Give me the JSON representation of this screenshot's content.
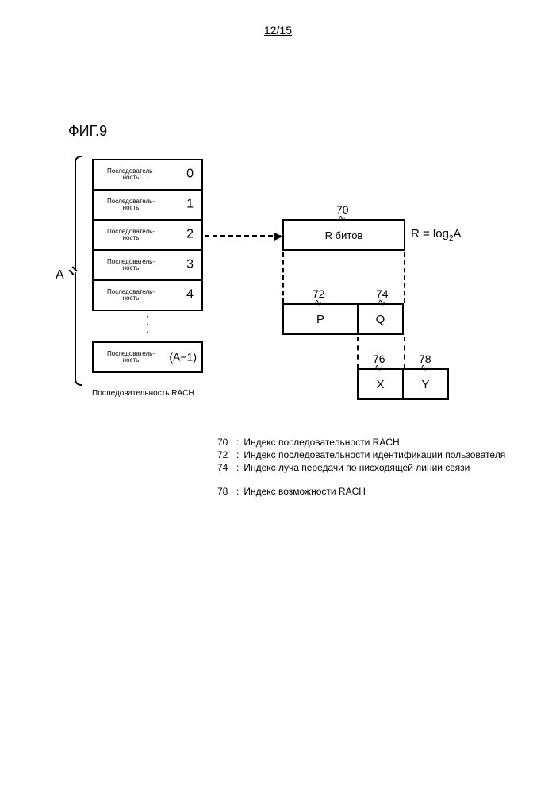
{
  "page_number": "12/15",
  "figure_label": "ФИГ.9",
  "brace_label": "A",
  "sequence_word": "Последователь-\nность",
  "sequence_indices": [
    "0",
    "1",
    "2",
    "3",
    "4"
  ],
  "sequence_last_index": "(A−1)",
  "sequence_caption": "Последовательность RACH",
  "r_box_label": "R битов",
  "r_formula_prefix": "R = log",
  "r_formula_sub": "2",
  "r_formula_suffix": "A",
  "refs": {
    "r": "70",
    "p": "72",
    "q": "74",
    "x": "76",
    "y": "78"
  },
  "p_label": "P",
  "q_label": "Q",
  "x_label": "X",
  "y_label": "Y",
  "legend": [
    {
      "num": "70",
      "text": "Индекс последовательности RACH"
    },
    {
      "num": "72",
      "text": "Индекс последовательности идентификации пользователя"
    },
    {
      "num": "74",
      "text": "Индекс луча передачи по нисходящей линии связи"
    }
  ],
  "legend2": [
    {
      "num": "78",
      "text": "Индекс возможности RACH"
    }
  ],
  "colors": {
    "stroke": "#000000",
    "background": "#ffffff",
    "text": "#000000"
  }
}
